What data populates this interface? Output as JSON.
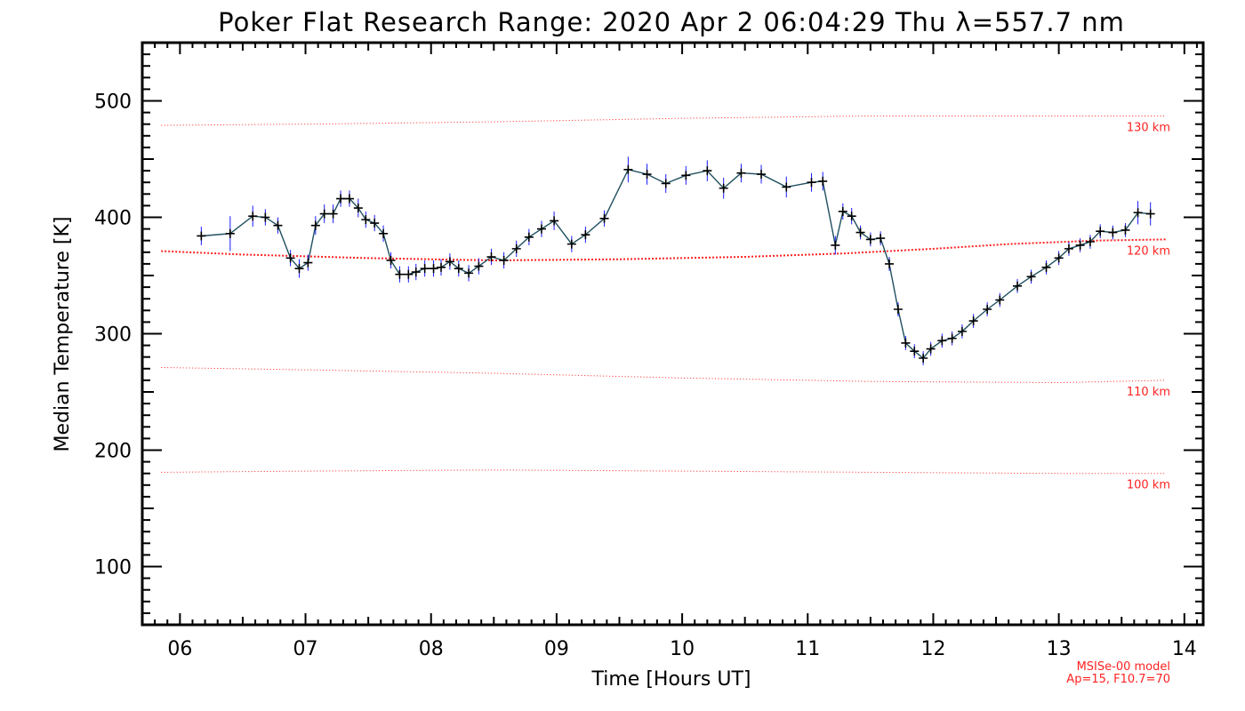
{
  "chart_data": {
    "type": "line",
    "title": "Poker Flat Research Range: 2020 Apr  2 06:04:29 Thu λ=557.7 nm",
    "xlabel": "Time [Hours UT]",
    "ylabel": "Median Temperature [K]",
    "xlim": [
      5.7,
      14.15
    ],
    "ylim": [
      50,
      550
    ],
    "x_tick_labels": [
      "06",
      "07",
      "08",
      "09",
      "10",
      "11",
      "12",
      "13",
      "14"
    ],
    "x_tick_values": [
      6,
      7,
      8,
      9,
      10,
      11,
      12,
      13,
      14
    ],
    "y_tick_values": [
      100,
      200,
      300,
      400,
      500
    ],
    "y_tick_labels": [
      "100",
      "200",
      "300",
      "400",
      "500"
    ],
    "colors": {
      "data_line": "#1f4f5f",
      "error_bar": "#1a1aff",
      "model": "#ff2222",
      "marker": "#000000"
    },
    "series": [
      {
        "x": [
          6.17,
          6.4,
          6.58,
          6.68,
          6.78,
          6.88,
          6.95,
          7.02,
          7.08,
          7.15,
          7.22,
          7.28,
          7.35,
          7.42,
          7.48,
          7.55,
          7.62,
          7.68,
          7.75,
          7.82,
          7.88,
          7.95,
          8.02,
          8.08,
          8.15,
          8.22,
          8.3,
          8.38,
          8.48,
          8.58,
          8.68,
          8.78,
          8.88,
          8.98,
          9.12,
          9.23,
          9.38,
          9.57,
          9.72,
          9.87,
          10.03,
          10.2,
          10.33,
          10.47,
          10.63,
          10.83,
          11.03,
          11.12,
          11.22,
          11.28,
          11.35,
          11.42,
          11.5,
          11.58,
          11.65,
          11.72,
          11.78,
          11.85,
          11.92,
          11.98,
          12.07,
          12.15,
          12.23,
          12.32,
          12.43,
          12.53,
          12.67,
          12.78,
          12.9,
          13.0,
          13.08,
          13.17,
          13.25,
          13.33,
          13.43,
          13.53,
          13.63,
          13.73
        ],
        "y": [
          384,
          386,
          401,
          400,
          393,
          365,
          356,
          361,
          393,
          403,
          403,
          416,
          416,
          408,
          398,
          395,
          386,
          363,
          351,
          351,
          353,
          356,
          356,
          357,
          362,
          356,
          352,
          358,
          366,
          363,
          373,
          383,
          390,
          397,
          377,
          385,
          399,
          441,
          437,
          429,
          436,
          440,
          425,
          438,
          437,
          426,
          430,
          431,
          376,
          405,
          401,
          387,
          381,
          382,
          360,
          321,
          292,
          285,
          279,
          287,
          294,
          296,
          302,
          311,
          321,
          329,
          341,
          349,
          357,
          365,
          373,
          376,
          379,
          388,
          387,
          389,
          404,
          403
        ]
      }
    ],
    "error_bars": [
      8,
      15,
      9,
      7,
      7,
      7,
      8,
      7,
      8,
      8,
      8,
      7,
      7,
      8,
      7,
      7,
      7,
      7,
      7,
      7,
      7,
      7,
      7,
      7,
      7,
      7,
      7,
      7,
      7,
      7,
      7,
      7,
      7,
      8,
      7,
      7,
      7,
      11,
      9,
      8,
      8,
      9,
      9,
      8,
      8,
      9,
      8,
      8,
      8,
      7,
      7,
      6,
      6,
      6,
      6,
      6,
      6,
      6,
      6,
      6,
      6,
      6,
      6,
      6,
      6,
      6,
      6,
      6,
      6,
      6,
      6,
      6,
      6,
      6,
      6,
      6,
      10,
      10
    ],
    "model_curves": [
      {
        "label": "130 km",
        "x": [
          5.85,
          7.0,
          8.5,
          10.0,
          11.5,
          13.0,
          13.85
        ],
        "y": [
          479,
          480,
          482,
          485,
          487,
          487,
          487
        ],
        "emphasis": false
      },
      {
        "label": "120 km",
        "x": [
          5.85,
          6.5,
          7.5,
          8.5,
          9.5,
          10.5,
          11.3,
          12.0,
          12.6,
          13.3,
          13.85
        ],
        "y": [
          371,
          368,
          365,
          363,
          364,
          366,
          369,
          373,
          377,
          380,
          381
        ],
        "emphasis": true
      },
      {
        "label": "110 km",
        "x": [
          5.85,
          7.0,
          8.5,
          10.0,
          11.5,
          13.0,
          13.85
        ],
        "y": [
          271,
          269,
          266,
          262,
          259,
          258,
          260
        ],
        "emphasis": false
      },
      {
        "label": "100 km",
        "x": [
          5.85,
          7.0,
          8.5,
          10.0,
          11.5,
          13.0,
          13.85
        ],
        "y": [
          181,
          182,
          183,
          182,
          181,
          180,
          180
        ],
        "emphasis": false
      }
    ],
    "footnote": [
      "MSISe-00 model",
      "Ap=15, F10.7=70"
    ],
    "grid": false
  }
}
